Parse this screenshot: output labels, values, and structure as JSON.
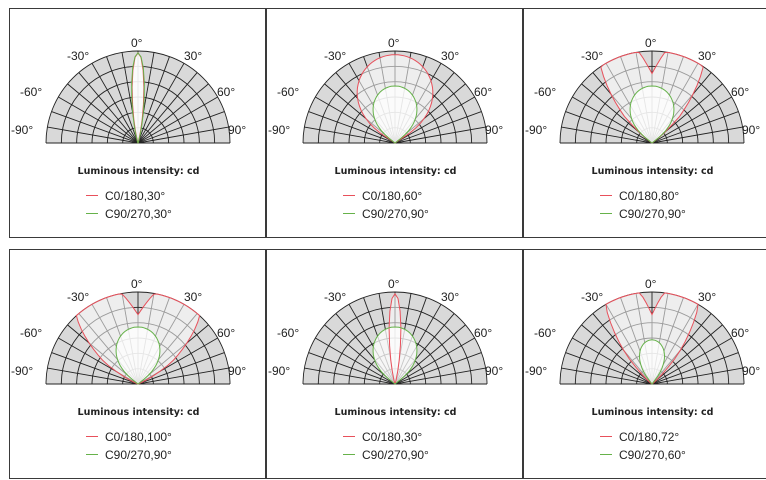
{
  "chart_data": [
    {
      "type": "polar",
      "title": "Luminous intensity: cd",
      "angle_labels": [
        "-90°",
        "-60°",
        "-30°",
        "0°",
        "30°",
        "60°",
        "90°"
      ],
      "series": [
        {
          "name": "C0/180,30°",
          "color": "#e8505b",
          "beam_angle": 30
        },
        {
          "name": "C90/270,30°",
          "color": "#66b24a",
          "beam_angle": 30
        }
      ]
    },
    {
      "type": "polar",
      "title": "Luminous intensity: cd",
      "angle_labels": [
        "-90°",
        "-60°",
        "-30°",
        "0°",
        "30°",
        "60°",
        "90°"
      ],
      "series": [
        {
          "name": "C0/180,60°",
          "color": "#e8505b",
          "beam_angle": 60
        },
        {
          "name": "C90/270,90°",
          "color": "#66b24a",
          "beam_angle": 90
        }
      ]
    },
    {
      "type": "polar",
      "title": "Luminous intensity: cd",
      "angle_labels": [
        "-90°",
        "-60°",
        "-30°",
        "0°",
        "30°",
        "60°",
        "90°"
      ],
      "series": [
        {
          "name": "C0/180,80°",
          "color": "#e8505b",
          "beam_angle": 80
        },
        {
          "name": "C90/270,90°",
          "color": "#66b24a",
          "beam_angle": 90
        }
      ]
    },
    {
      "type": "polar",
      "title": "Luminous intensity: cd",
      "angle_labels": [
        "-90°",
        "-60°",
        "-30°",
        "0°",
        "30°",
        "60°",
        "90°"
      ],
      "series": [
        {
          "name": "C0/180,100°",
          "color": "#e8505b",
          "beam_angle": 100
        },
        {
          "name": "C90/270,90°",
          "color": "#66b24a",
          "beam_angle": 90
        }
      ]
    },
    {
      "type": "polar",
      "title": "Luminous intensity: cd",
      "angle_labels": [
        "-90°",
        "-60°",
        "-30°",
        "0°",
        "30°",
        "60°",
        "90°"
      ],
      "series": [
        {
          "name": "C0/180,30°",
          "color": "#e8505b",
          "beam_angle": 30
        },
        {
          "name": "C90/270,90°",
          "color": "#66b24a",
          "beam_angle": 90
        }
      ]
    },
    {
      "type": "polar",
      "title": "Luminous intensity: cd",
      "angle_labels": [
        "-90°",
        "-60°",
        "-30°",
        "0°",
        "30°",
        "60°",
        "90°"
      ],
      "series": [
        {
          "name": "C0/180,72°",
          "color": "#e8505b",
          "beam_angle": 72
        },
        {
          "name": "C90/270,60°",
          "color": "#66b24a",
          "beam_angle": 60
        }
      ]
    }
  ]
}
